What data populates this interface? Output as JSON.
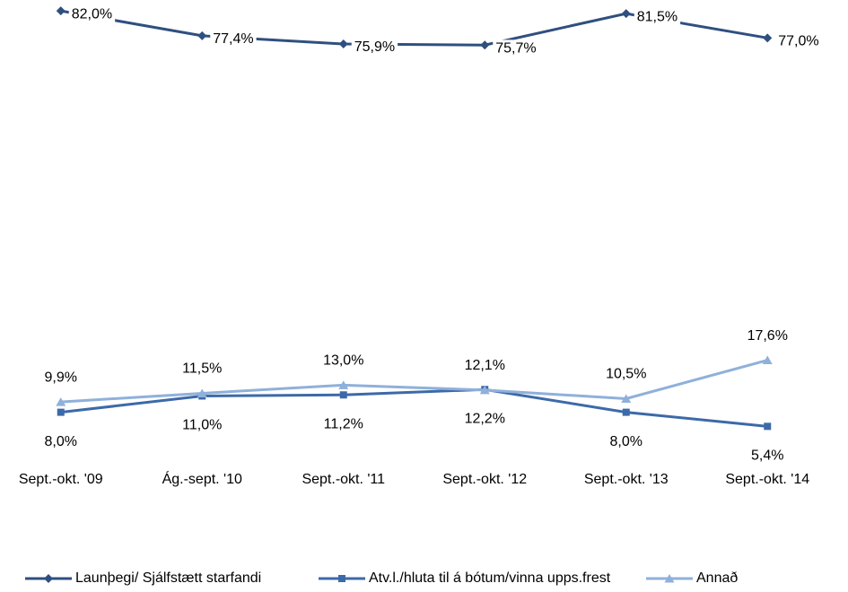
{
  "chart_data": {
    "type": "line",
    "categories": [
      "Sept.-okt. '09",
      "Ág.-sept. '10",
      "Sept.-okt. '11",
      "Sept.-okt. '12",
      "Sept.-okt. '13",
      "Sept.-okt. '14"
    ],
    "ylim": [
      0,
      84
    ],
    "legend": "bottom",
    "series": [
      {
        "name": "Launþegi/ Sjálfstætt starfandi",
        "color": "#2f4f80",
        "marker": "diamond",
        "label_position": "right",
        "values": [
          82.0,
          77.4,
          75.9,
          75.7,
          81.5,
          77.0
        ],
        "value_labels": [
          "82,0%",
          "77,4%",
          "75,9%",
          "75,7%",
          "81,5%",
          "77,0%"
        ]
      },
      {
        "name": "Atv.l./hluta til á bótum/vinna upps.frest",
        "color": "#3c6aa8",
        "marker": "square",
        "label_position": "below",
        "values": [
          8.0,
          11.0,
          11.2,
          12.2,
          8.0,
          5.4
        ],
        "value_labels": [
          "8,0%",
          "11,0%",
          "11,2%",
          "12,2%",
          "8,0%",
          "5,4%"
        ]
      },
      {
        "name": "Annað",
        "color": "#8fb0da",
        "marker": "triangle",
        "label_position": "above",
        "values": [
          9.9,
          11.5,
          13.0,
          12.1,
          10.5,
          17.6
        ],
        "value_labels": [
          "9,9%",
          "11,5%",
          "13,0%",
          "12,1%",
          "10,5%",
          "17,6%"
        ]
      }
    ]
  }
}
